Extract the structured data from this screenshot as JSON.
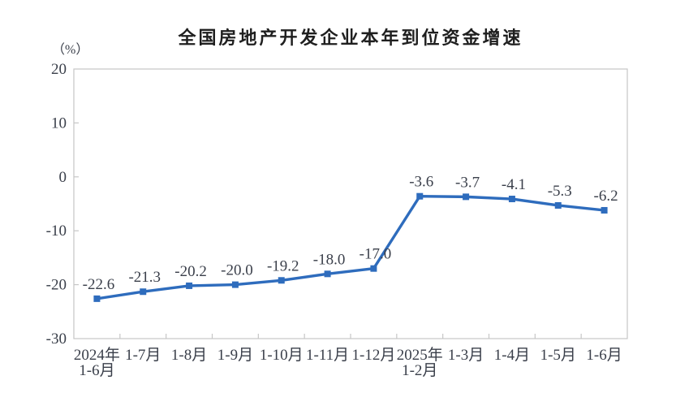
{
  "chart_data": {
    "type": "line",
    "title": "全国房地产开发企业本年到位资金增速",
    "unit_label": "（%）",
    "categories": [
      [
        "2024年",
        "1-6月"
      ],
      [
        "1-7月"
      ],
      [
        "1-8月"
      ],
      [
        "1-9月"
      ],
      [
        "1-10月"
      ],
      [
        "1-11月"
      ],
      [
        "1-12月"
      ],
      [
        "2025年",
        "1-2月"
      ],
      [
        "1-3月"
      ],
      [
        "1-4月"
      ],
      [
        "1-5月"
      ],
      [
        "1-6月"
      ]
    ],
    "values": [
      -22.6,
      -21.3,
      -20.2,
      -20.0,
      -19.2,
      -18.0,
      -17.0,
      -3.6,
      -3.7,
      -4.1,
      -5.3,
      -6.2
    ],
    "data_labels": [
      "-22.6",
      "-21.3",
      "-20.2",
      "-20.0",
      "-19.2",
      "-18.0",
      "-17.0",
      "-3.6",
      "-3.7",
      "-4.1",
      "-5.3",
      "-6.2"
    ],
    "yticks": [
      20,
      10,
      0,
      -10,
      -20,
      -30
    ],
    "ylim": [
      -30,
      20
    ],
    "grid": false,
    "legend": "none",
    "marker": "square",
    "colors": {
      "line": "#2e6cbd",
      "axis": "#c6c6c6",
      "text": "#3a3f4a",
      "title": "#1f1f1f",
      "background": "#ffffff"
    }
  }
}
